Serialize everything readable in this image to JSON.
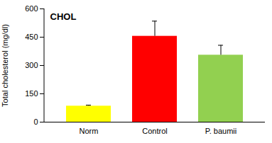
{
  "chart_data": {
    "type": "bar",
    "title": "CHOL",
    "y_label": "Total cholesterol (mg/dl)",
    "categories": [
      "Norm",
      "Control",
      "P. baumii"
    ],
    "values": [
      85,
      455,
      355
    ],
    "errors": [
      5,
      80,
      52
    ],
    "colors": [
      "#ffff00",
      "#ff0000",
      "#92d050"
    ],
    "ylim": [
      0,
      600
    ],
    "yticks": [
      0,
      150,
      300,
      450,
      600
    ],
    "grid": false
  }
}
